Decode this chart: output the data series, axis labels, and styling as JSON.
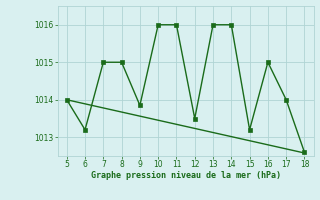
{
  "x": [
    5,
    6,
    7,
    8,
    9,
    10,
    11,
    12,
    13,
    14,
    15,
    16,
    17,
    18
  ],
  "y": [
    1014.0,
    1013.2,
    1015.0,
    1015.0,
    1013.85,
    1016.0,
    1016.0,
    1013.5,
    1016.0,
    1016.0,
    1013.2,
    1015.0,
    1014.0,
    1012.6
  ],
  "trend_x": [
    5,
    18
  ],
  "trend_y": [
    1014.0,
    1012.58
  ],
  "line_color": "#1a6b1a",
  "bg_color": "#d9f0f0",
  "grid_color": "#b0d4d4",
  "xlabel": "Graphe pression niveau de la mer (hPa)",
  "ylim": [
    1012.5,
    1016.5
  ],
  "xlim": [
    4.5,
    18.5
  ],
  "yticks": [
    1013,
    1014,
    1015,
    1016
  ],
  "xticks": [
    5,
    6,
    7,
    8,
    9,
    10,
    11,
    12,
    13,
    14,
    15,
    16,
    17,
    18
  ],
  "marker_size": 3,
  "line_width": 1.0
}
